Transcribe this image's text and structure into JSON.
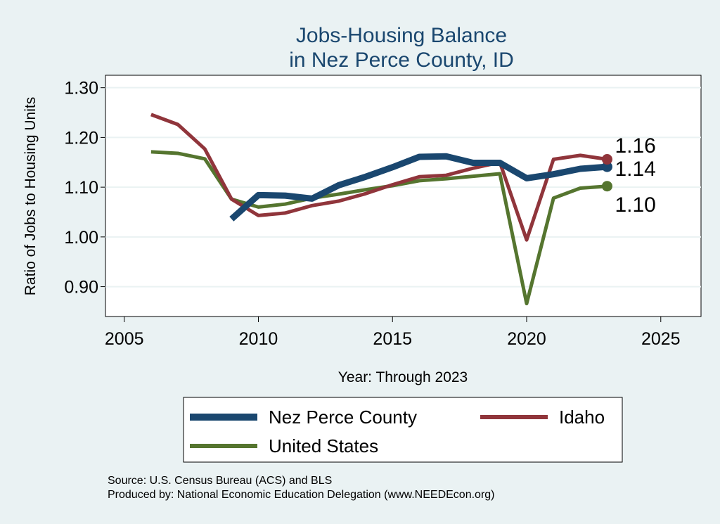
{
  "chart_data": {
    "type": "line",
    "title": [
      "Jobs-Housing Balance",
      "in Nez Perce County, ID"
    ],
    "xlabel": "Year: Through 2023",
    "ylabel": "Ratio of Jobs to Housing Units",
    "xlim": [
      2004.3,
      2026.5
    ],
    "ylim": [
      0.84,
      1.325
    ],
    "xticks": [
      2005,
      2010,
      2015,
      2020,
      2025
    ],
    "yticks": [
      0.9,
      1.0,
      1.1,
      1.2,
      1.3
    ],
    "ytick_labels": [
      "0.90",
      "1.00",
      "1.10",
      "1.20",
      "1.30"
    ],
    "grid": true,
    "legend_position": "bottom",
    "series": [
      {
        "name": "Nez Perce County",
        "color": "#1a476f",
        "width": 9,
        "x": [
          2009,
          2010,
          2011,
          2012,
          2013,
          2014,
          2015,
          2016,
          2017,
          2018,
          2019,
          2020,
          2021,
          2022,
          2023
        ],
        "values": [
          1.036,
          1.084,
          1.083,
          1.077,
          1.104,
          1.121,
          1.14,
          1.161,
          1.162,
          1.149,
          1.149,
          1.118,
          1.126,
          1.137,
          1.141
        ],
        "end_label": "1.14"
      },
      {
        "name": "Idaho",
        "color": "#90353b",
        "width": 5,
        "x": [
          2006,
          2007,
          2008,
          2009,
          2010,
          2011,
          2012,
          2013,
          2014,
          2015,
          2016,
          2017,
          2018,
          2019,
          2020,
          2021,
          2022,
          2023
        ],
        "values": [
          1.246,
          1.226,
          1.177,
          1.076,
          1.043,
          1.048,
          1.063,
          1.072,
          1.087,
          1.105,
          1.121,
          1.124,
          1.138,
          1.15,
          0.994,
          1.156,
          1.164,
          1.156
        ],
        "end_label": "1.16"
      },
      {
        "name": "United States",
        "color": "#55752f",
        "width": 5,
        "x": [
          2006,
          2007,
          2008,
          2009,
          2010,
          2011,
          2012,
          2013,
          2014,
          2015,
          2016,
          2017,
          2018,
          2019,
          2020,
          2021,
          2022,
          2023
        ],
        "values": [
          1.171,
          1.168,
          1.157,
          1.076,
          1.06,
          1.066,
          1.078,
          1.086,
          1.095,
          1.103,
          1.113,
          1.117,
          1.122,
          1.127,
          0.866,
          1.078,
          1.098,
          1.102
        ],
        "end_label": "1.10"
      }
    ],
    "source_lines": [
      "Source: U.S. Census Bureau (ACS) and BLS",
      "Produced by: National Economic Education Delegation (www.NEEDEcon.org)"
    ]
  }
}
